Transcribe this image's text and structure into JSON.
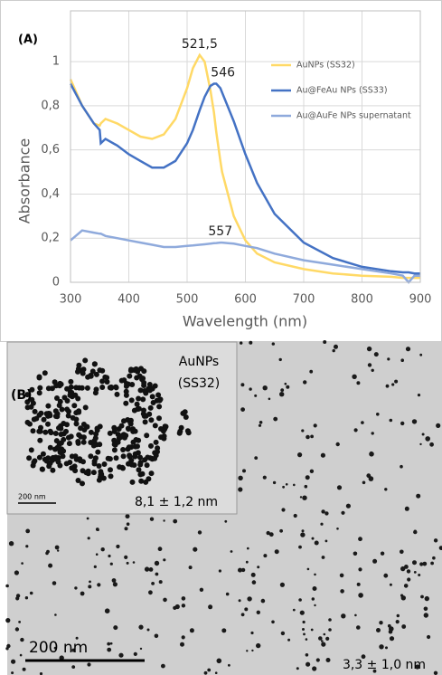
{
  "chart_data": {
    "type": "line",
    "panel_label": "(A)",
    "xlabel": "Wavelength (nm)",
    "ylabel": "Absorbance",
    "x": [
      300,
      320,
      340,
      350,
      352,
      360,
      380,
      400,
      420,
      440,
      460,
      480,
      500,
      510,
      521.5,
      530,
      540,
      546,
      550,
      557,
      560,
      580,
      600,
      620,
      650,
      700,
      750,
      800,
      850,
      870,
      880,
      890,
      900
    ],
    "series": [
      {
        "name": "AuNPs (SS32)",
        "color": "#ffd966",
        "values": [
          0.92,
          0.8,
          0.72,
          0.71,
          0.72,
          0.74,
          0.72,
          0.69,
          0.66,
          0.65,
          0.67,
          0.74,
          0.88,
          0.97,
          1.03,
          1.0,
          0.87,
          0.77,
          0.68,
          0.55,
          0.5,
          0.3,
          0.19,
          0.13,
          0.09,
          0.06,
          0.04,
          0.03,
          0.025,
          0.02,
          0.02,
          0.02,
          0.02
        ]
      },
      {
        "name": "Au@FeAu NPs (SS33)",
        "color": "#4472c4",
        "values": [
          0.9,
          0.8,
          0.72,
          0.69,
          0.63,
          0.65,
          0.62,
          0.58,
          0.55,
          0.52,
          0.52,
          0.55,
          0.63,
          0.69,
          0.78,
          0.84,
          0.89,
          0.9,
          0.9,
          0.88,
          0.86,
          0.73,
          0.58,
          0.45,
          0.31,
          0.18,
          0.11,
          0.07,
          0.05,
          0.045,
          0.045,
          0.04,
          0.04
        ]
      },
      {
        "name": "Au@AuFe NPs supernatant",
        "color": "#8faadc",
        "values": [
          0.19,
          0.235,
          0.225,
          0.22,
          0.22,
          0.21,
          0.2,
          0.19,
          0.18,
          0.17,
          0.16,
          0.16,
          0.165,
          0.167,
          0.17,
          0.172,
          0.175,
          0.177,
          0.178,
          0.18,
          0.18,
          0.175,
          0.165,
          0.155,
          0.13,
          0.1,
          0.08,
          0.06,
          0.04,
          0.03,
          0.0,
          0.03,
          0.03
        ]
      }
    ],
    "annotations": [
      {
        "x": 521.5,
        "label": "521,5"
      },
      {
        "x": 546,
        "label": "546"
      },
      {
        "x": 557,
        "label": "557"
      }
    ],
    "xlim": [
      300,
      900
    ],
    "xticks": [
      300,
      400,
      500,
      600,
      700,
      800,
      900
    ],
    "ylim": [
      0,
      1.23
    ],
    "yticks": [
      0,
      {
        "value": 0.2,
        "label": "0,2"
      },
      {
        "value": 0.4,
        "label": "0,4"
      },
      {
        "value": 0.6,
        "label": "0,6"
      },
      {
        "value": 0.8,
        "label": "0,8"
      },
      1
    ],
    "grid": true,
    "legend": "upper right"
  },
  "image_panel": {
    "panel_label": "(B)",
    "inset_title_line1": "AuNPs",
    "inset_title_line2": "(SS32)",
    "inset_scale_bar": "200 nm",
    "inset_size": "8,1 ± 1,2 nm",
    "scale_bar": "200 nm",
    "size": "3,3 ± 1,0 nm"
  }
}
